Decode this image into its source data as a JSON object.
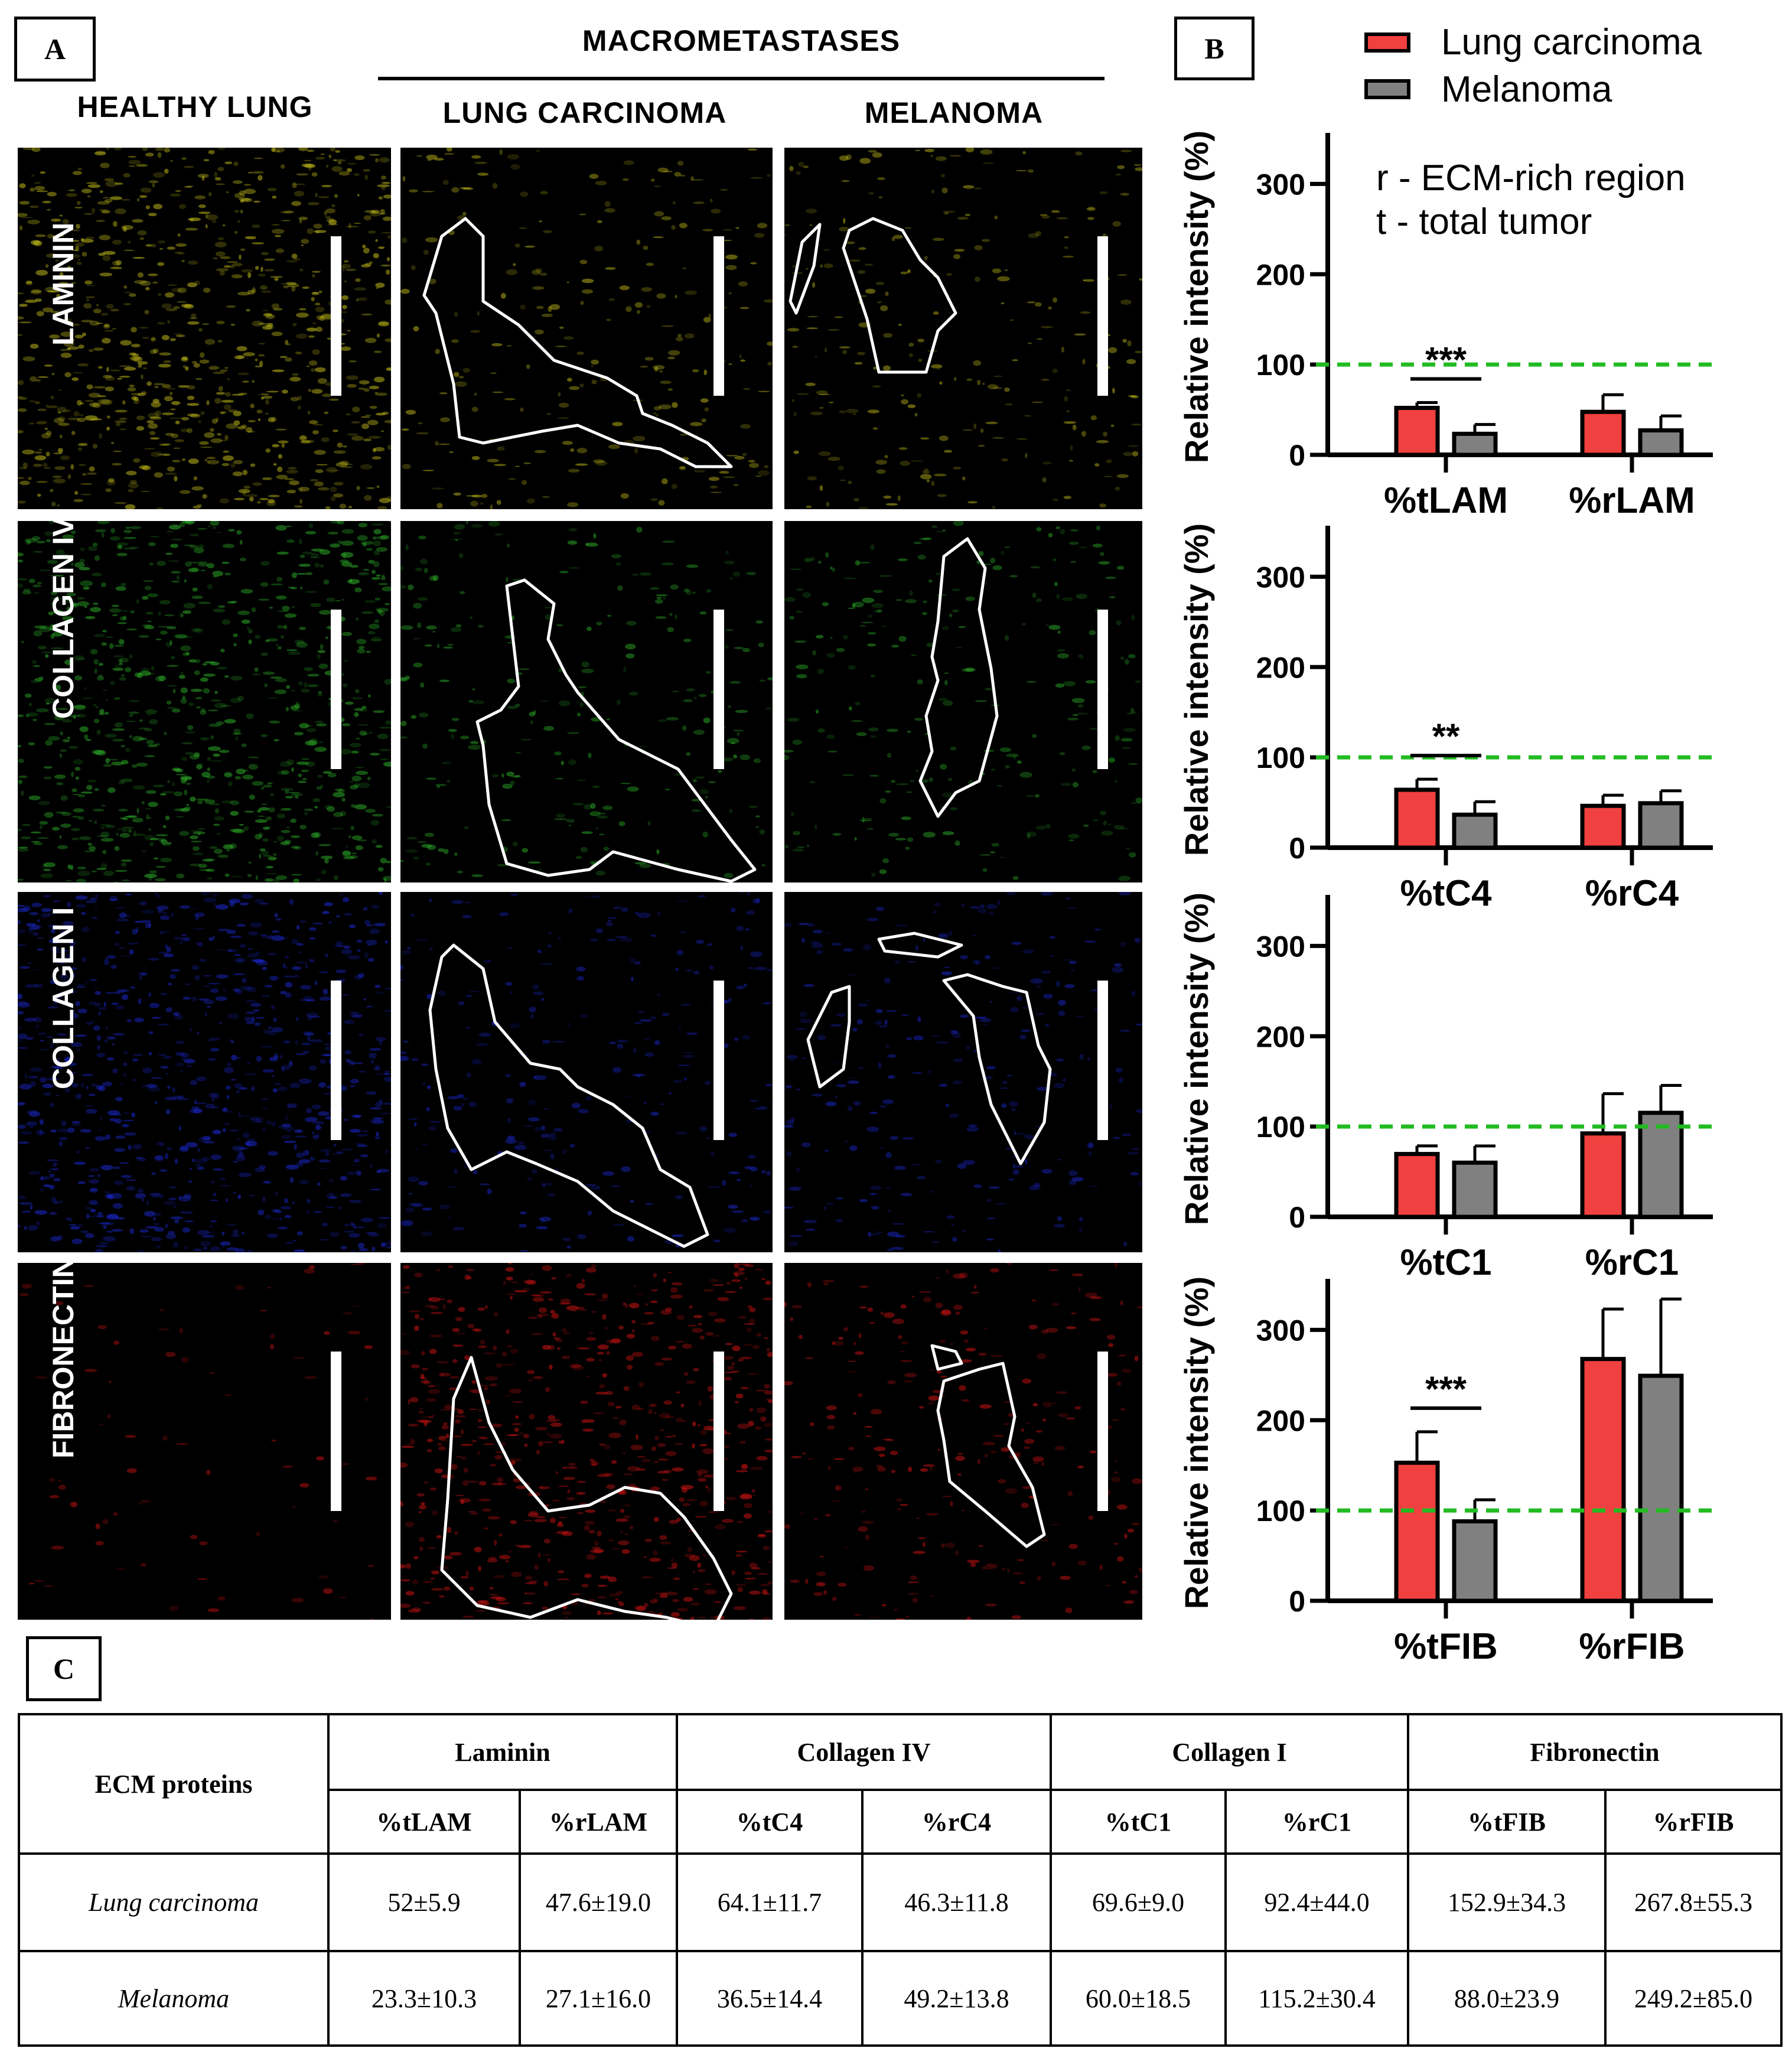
{
  "panel_labels": {
    "a": "A",
    "b": "B",
    "c": "C"
  },
  "panel_a": {
    "group_header": "MACROMETASTASES",
    "columns": [
      "HEALTHY LUNG",
      "LUNG CARCINOMA",
      "MELANOMA"
    ],
    "rows": [
      {
        "label": "LAMININ",
        "color": "#c9c21a"
      },
      {
        "label": "COLLAGEN IV",
        "color": "#2fb52a"
      },
      {
        "label": "COLLAGEN I",
        "color": "#1c2ad8"
      },
      {
        "label": "FIBRONECTIN",
        "color": "#e81515"
      }
    ]
  },
  "panel_b": {
    "legend": [
      {
        "name": "Lung carcinoma",
        "color": "#f0403f"
      },
      {
        "name": "Melanoma",
        "color": "#808080"
      }
    ],
    "notes": [
      "r - ECM-rich region",
      "t - total tumor"
    ],
    "reference_line_color": "#22bb22",
    "reference_value": 100
  },
  "chart_data": [
    {
      "type": "bar",
      "ylabel": "Relative intensity (%)",
      "ylim": [
        0,
        350
      ],
      "yticks": [
        0,
        100,
        200,
        300
      ],
      "categories": [
        "%tLAM",
        "%rLAM"
      ],
      "series": [
        {
          "name": "Lung carcinoma",
          "values": [
            52,
            47.6
          ],
          "errors": [
            5.9,
            19.0
          ]
        },
        {
          "name": "Melanoma",
          "values": [
            23.3,
            27.1
          ],
          "errors": [
            10.3,
            16.0
          ]
        }
      ],
      "significance": [
        {
          "category": "%tLAM",
          "label": "***"
        }
      ]
    },
    {
      "type": "bar",
      "ylabel": "Relative intensity (%)",
      "ylim": [
        0,
        350
      ],
      "yticks": [
        0,
        100,
        200,
        300
      ],
      "categories": [
        "%tC4",
        "%rC4"
      ],
      "series": [
        {
          "name": "Lung carcinoma",
          "values": [
            64.1,
            46.3
          ],
          "errors": [
            11.7,
            11.8
          ]
        },
        {
          "name": "Melanoma",
          "values": [
            36.5,
            49.2
          ],
          "errors": [
            14.4,
            13.8
          ]
        }
      ],
      "significance": [
        {
          "category": "%tC4",
          "label": "**"
        }
      ]
    },
    {
      "type": "bar",
      "ylabel": "Relative intensity (%)",
      "ylim": [
        0,
        350
      ],
      "yticks": [
        0,
        100,
        200,
        300
      ],
      "categories": [
        "%tC1",
        "%rC1"
      ],
      "series": [
        {
          "name": "Lung carcinoma",
          "values": [
            69.6,
            92.4
          ],
          "errors": [
            9.0,
            44.0
          ]
        },
        {
          "name": "Melanoma",
          "values": [
            60.0,
            115.2
          ],
          "errors": [
            18.5,
            30.4
          ]
        }
      ],
      "significance": []
    },
    {
      "type": "bar",
      "ylabel": "Relative intensity (%)",
      "ylim": [
        0,
        350
      ],
      "yticks": [
        0,
        100,
        200,
        300
      ],
      "categories": [
        "%tFIB",
        "%rFIB"
      ],
      "series": [
        {
          "name": "Lung carcinoma",
          "values": [
            152.9,
            267.8
          ],
          "errors": [
            34.3,
            55.3
          ]
        },
        {
          "name": "Melanoma",
          "values": [
            88.0,
            249.2
          ],
          "errors": [
            23.9,
            85.0
          ]
        }
      ],
      "significance": [
        {
          "category": "%tFIB",
          "label": "***"
        }
      ]
    }
  ],
  "table": {
    "corner": "ECM proteins",
    "groups": [
      "Laminin",
      "Collagen IV",
      "Collagen I",
      "Fibronectin"
    ],
    "subheaders": [
      "%tLAM",
      "%rLAM",
      "%tC4",
      "%rC4",
      "%tC1",
      "%rC1",
      "%tFIB",
      "%rFIB"
    ],
    "rows": [
      {
        "name": "Lung carcinoma",
        "values": [
          "52±5.9",
          "47.6±19.0",
          "64.1±11.7",
          "46.3±11.8",
          "69.6±9.0",
          "92.4±44.0",
          "152.9±34.3",
          "267.8±55.3"
        ]
      },
      {
        "name": "Melanoma",
        "values": [
          "23.3±10.3",
          "27.1±16.0",
          "36.5±14.4",
          "49.2±13.8",
          "60.0±18.5",
          "115.2±30.4",
          "88.0±23.9",
          "249.2±85.0"
        ]
      }
    ]
  }
}
